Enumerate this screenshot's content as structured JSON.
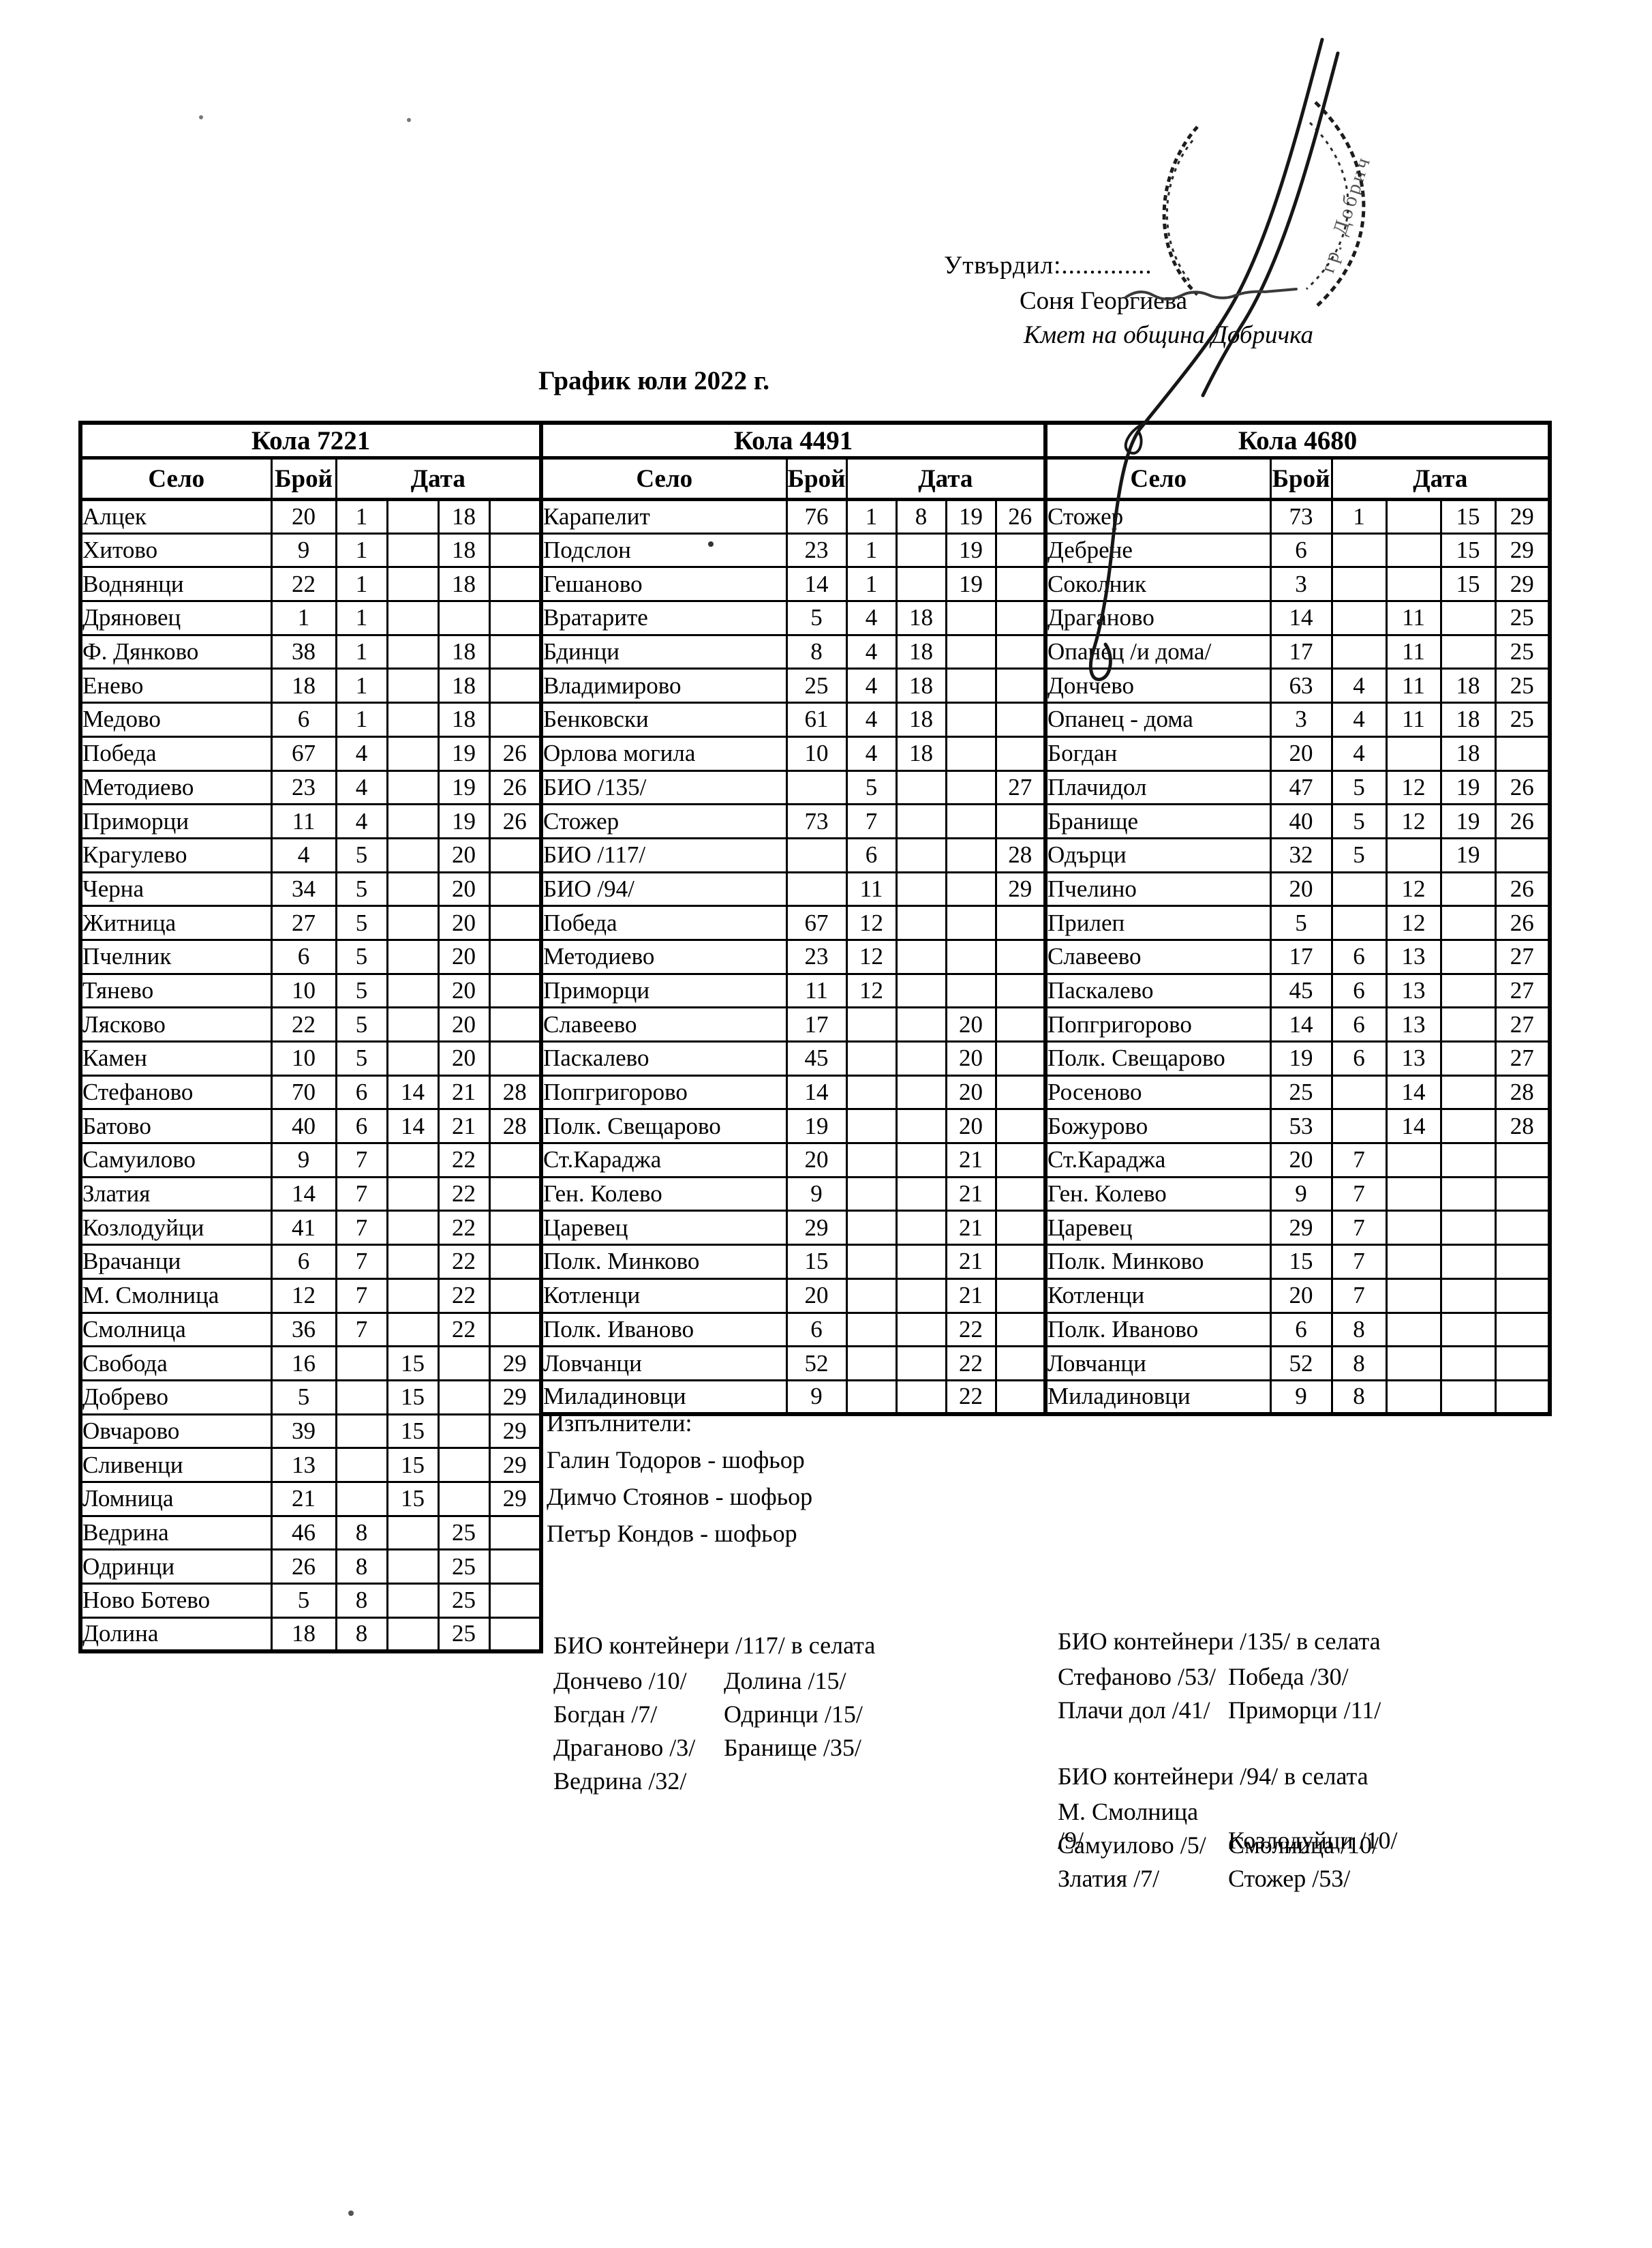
{
  "header": {
    "approve_label": "Утвърдил:.............",
    "approver_name": "Соня Георгиева",
    "approver_role": "Кмет  на община Добричка",
    "doc_title": "График юли 2022 г.",
    "stamp_text": "гр. Добрич"
  },
  "tables": [
    {
      "title": "Кола 7221",
      "columns": {
        "selo": "Село",
        "broy": "Брой",
        "data": "Дата"
      },
      "rows": [
        [
          "Алцек",
          "20",
          "1",
          "",
          "18",
          ""
        ],
        [
          "Хитово",
          "9",
          "1",
          "",
          "18",
          ""
        ],
        [
          "Воднянци",
          "22",
          "1",
          "",
          "18",
          ""
        ],
        [
          "Дряновец",
          "1",
          "1",
          "",
          "",
          ""
        ],
        [
          "Ф. Дянково",
          "38",
          "1",
          "",
          "18",
          ""
        ],
        [
          "Енево",
          "18",
          "1",
          "",
          "18",
          ""
        ],
        [
          "Медово",
          "6",
          "1",
          "",
          "18",
          ""
        ],
        [
          "Победа",
          "67",
          "4",
          "",
          "19",
          "26"
        ],
        [
          "Методиево",
          "23",
          "4",
          "",
          "19",
          "26"
        ],
        [
          "Приморци",
          "11",
          "4",
          "",
          "19",
          "26"
        ],
        [
          "Крагулево",
          "4",
          "5",
          "",
          "20",
          ""
        ],
        [
          "Черна",
          "34",
          "5",
          "",
          "20",
          ""
        ],
        [
          "Житница",
          "27",
          "5",
          "",
          "20",
          ""
        ],
        [
          "Пчелник",
          "6",
          "5",
          "",
          "20",
          ""
        ],
        [
          "Тянево",
          "10",
          "5",
          "",
          "20",
          ""
        ],
        [
          "Лясково",
          "22",
          "5",
          "",
          "20",
          ""
        ],
        [
          "Камен",
          "10",
          "5",
          "",
          "20",
          ""
        ],
        [
          "Стефаново",
          "70",
          "6",
          "14",
          "21",
          "28"
        ],
        [
          "Батово",
          "40",
          "6",
          "14",
          "21",
          "28"
        ],
        [
          "Самуилово",
          "9",
          "7",
          "",
          "22",
          ""
        ],
        [
          "Златия",
          "14",
          "7",
          "",
          "22",
          ""
        ],
        [
          "Козлодуйци",
          "41",
          "7",
          "",
          "22",
          ""
        ],
        [
          "Врачанци",
          "6",
          "7",
          "",
          "22",
          ""
        ],
        [
          "М. Смолница",
          "12",
          "7",
          "",
          "22",
          ""
        ],
        [
          "Смолница",
          "36",
          "7",
          "",
          "22",
          ""
        ],
        [
          "Свобода",
          "16",
          "",
          "15",
          "",
          "29"
        ],
        [
          "Добрево",
          "5",
          "",
          "15",
          "",
          "29"
        ],
        [
          "Овчарово",
          "39",
          "",
          "15",
          "",
          "29"
        ],
        [
          "Сливенци",
          "13",
          "",
          "15",
          "",
          "29"
        ],
        [
          "Ломница",
          "21",
          "",
          "15",
          "",
          "29"
        ],
        [
          "Ведрина",
          "46",
          "8",
          "",
          "25",
          ""
        ],
        [
          "Одринци",
          "26",
          "8",
          "",
          "25",
          ""
        ],
        [
          "Ново Ботево",
          "5",
          "8",
          "",
          "25",
          ""
        ],
        [
          "Долина",
          "18",
          "8",
          "",
          "25",
          ""
        ]
      ]
    },
    {
      "title": "Кола 4491",
      "columns": {
        "selo": "Село",
        "broy": "Брой",
        "data": "Дата"
      },
      "rows": [
        [
          "Карапелит",
          "76",
          "1",
          "8",
          "19",
          "26"
        ],
        [
          "Подслон",
          "23",
          "1",
          "",
          "19",
          ""
        ],
        [
          "Гешаново",
          "14",
          "1",
          "",
          "19",
          ""
        ],
        [
          "Вратарите",
          "5",
          "4",
          "18",
          "",
          ""
        ],
        [
          "Бдинци",
          "8",
          "4",
          "18",
          "",
          ""
        ],
        [
          "Владимирово",
          "25",
          "4",
          "18",
          "",
          ""
        ],
        [
          "Бенковски",
          "61",
          "4",
          "18",
          "",
          ""
        ],
        [
          "Орлова могила",
          "10",
          "4",
          "18",
          "",
          ""
        ],
        [
          "БИО /135/",
          "",
          "5",
          "",
          "",
          "27"
        ],
        [
          "Стожер",
          "73",
          "7",
          "",
          "",
          ""
        ],
        [
          "БИО /117/",
          "",
          "6",
          "",
          "",
          "28"
        ],
        [
          "БИО /94/",
          "",
          "11",
          "",
          "",
          "29"
        ],
        [
          "Победа",
          "67",
          "12",
          "",
          "",
          ""
        ],
        [
          "Методиево",
          "23",
          "12",
          "",
          "",
          ""
        ],
        [
          "Приморци",
          "11",
          "12",
          "",
          "",
          ""
        ],
        [
          "Славеево",
          "17",
          "",
          "",
          "20",
          ""
        ],
        [
          "Паскалево",
          "45",
          "",
          "",
          "20",
          ""
        ],
        [
          "Попгригорово",
          "14",
          "",
          "",
          "20",
          ""
        ],
        [
          "Полк. Свещарово",
          "19",
          "",
          "",
          "20",
          ""
        ],
        [
          "Ст.Караджа",
          "20",
          "",
          "",
          "21",
          ""
        ],
        [
          "Ген. Колево",
          "9",
          "",
          "",
          "21",
          ""
        ],
        [
          "Царевец",
          "29",
          "",
          "",
          "21",
          ""
        ],
        [
          "Полк. Минково",
          "15",
          "",
          "",
          "21",
          ""
        ],
        [
          "Котленци",
          "20",
          "",
          "",
          "21",
          ""
        ],
        [
          "Полк. Иваново",
          "6",
          "",
          "",
          "22",
          ""
        ],
        [
          "Ловчанци",
          "52",
          "",
          "",
          "22",
          ""
        ],
        [
          "Миладиновци",
          "9",
          "",
          "",
          "22",
          ""
        ]
      ]
    },
    {
      "title": "Кола 4680",
      "columns": {
        "selo": "Село",
        "broy": "Брой",
        "data": "Дата"
      },
      "rows": [
        [
          "Стожер",
          "73",
          "1",
          "",
          "15",
          "29"
        ],
        [
          "Дебрене",
          "6",
          "",
          "",
          "15",
          "29"
        ],
        [
          "Соколник",
          "3",
          "",
          "",
          "15",
          "29"
        ],
        [
          "Драганово",
          "14",
          "",
          "11",
          "",
          "25"
        ],
        [
          "Опанец /и дома/",
          "17",
          "",
          "11",
          "",
          "25"
        ],
        [
          "Дончево",
          "63",
          "4",
          "11",
          "18",
          "25"
        ],
        [
          "Опанец - дома",
          "3",
          "4",
          "11",
          "18",
          "25"
        ],
        [
          "Богдан",
          "20",
          "4",
          "",
          "18",
          ""
        ],
        [
          "Плачидол",
          "47",
          "5",
          "12",
          "19",
          "26"
        ],
        [
          "Бранище",
          "40",
          "5",
          "12",
          "19",
          "26"
        ],
        [
          "Одърци",
          "32",
          "5",
          "",
          "19",
          ""
        ],
        [
          "Пчелино",
          "20",
          "",
          "12",
          "",
          "26"
        ],
        [
          "Прилеп",
          "5",
          "",
          "12",
          "",
          "26"
        ],
        [
          "Славеево",
          "17",
          "6",
          "13",
          "",
          "27"
        ],
        [
          "Паскалево",
          "45",
          "6",
          "13",
          "",
          "27"
        ],
        [
          "Попгригорово",
          "14",
          "6",
          "13",
          "",
          "27"
        ],
        [
          "Полк. Свещарово",
          "19",
          "6",
          "13",
          "",
          "27"
        ],
        [
          "Росеново",
          "25",
          "",
          "14",
          "",
          "28"
        ],
        [
          "Божурово",
          "53",
          "",
          "14",
          "",
          "28"
        ],
        [
          "Ст.Караджа",
          "20",
          "7",
          "",
          "",
          ""
        ],
        [
          "Ген. Колево",
          "9",
          "7",
          "",
          "",
          ""
        ],
        [
          "Царевец",
          "29",
          "7",
          "",
          "",
          ""
        ],
        [
          "Полк. Минково",
          "15",
          "7",
          "",
          "",
          ""
        ],
        [
          "Котленци",
          "20",
          "7",
          "",
          "",
          ""
        ],
        [
          "Полк. Иваново",
          "6",
          "8",
          "",
          "",
          ""
        ],
        [
          "Ловчанци",
          "52",
          "8",
          "",
          "",
          ""
        ],
        [
          "Миладиновци",
          "9",
          "8",
          "",
          "",
          ""
        ]
      ]
    }
  ],
  "executors": {
    "title": "Изпълнители:",
    "items": [
      "Галин Тодоров - шофьор",
      "Димчо Стоянов - шофьор",
      "Петър Кондов - шофьор"
    ]
  },
  "bio_blocks": [
    {
      "title": "БИО контейнери /117/ в селата",
      "pairs": [
        [
          "Дончево /10/",
          "Долина /15/"
        ],
        [
          "Богдан /7/",
          "Одринци /15/"
        ],
        [
          "Драганово /3/",
          "Бранище /35/"
        ],
        [
          "Ведрина /32/",
          ""
        ]
      ]
    },
    {
      "title": "БИО контейнери /135/ в селата",
      "pairs": [
        [
          "Стефаново /53/",
          "Победа /30/"
        ],
        [
          "Плачи дол /41/",
          "Приморци /11/"
        ]
      ]
    },
    {
      "title": "БИО контейнери /94/ в селата",
      "pairs": [
        [
          "М. Смолница /9/",
          "Козлодуйци /10/"
        ],
        [
          "Самуилово /5/",
          "Смолница /10/"
        ],
        [
          "Златия /7/",
          "Стожер /53/"
        ]
      ]
    }
  ]
}
